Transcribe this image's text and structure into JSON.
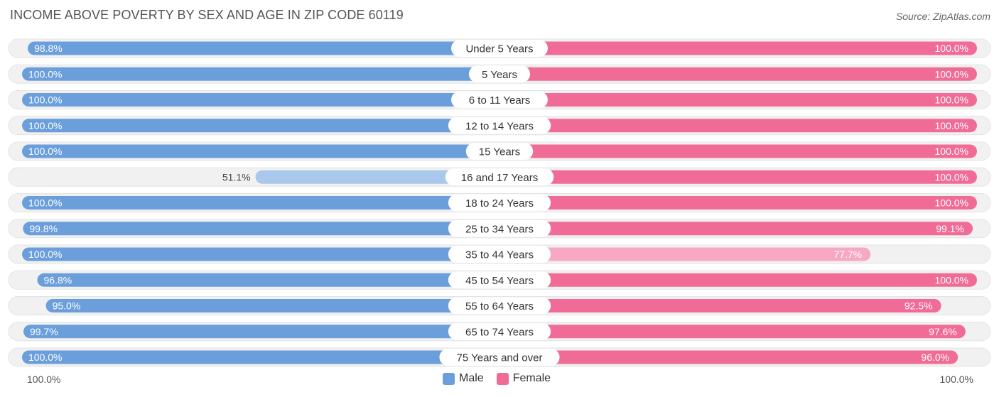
{
  "title": "INCOME ABOVE POVERTY BY SEX AND AGE IN ZIP CODE 60119",
  "source": "Source: ZipAtlas.com",
  "axis": {
    "left_label": "100.0%",
    "right_label": "100.0%"
  },
  "legend": {
    "male": "Male",
    "female": "Female"
  },
  "colors": {
    "male": "#6a9fdc",
    "male_light": "#a9c8ec",
    "female": "#f06c97",
    "female_light": "#f7a8c2",
    "track": "#f1f1f1"
  },
  "chart_data": {
    "type": "bar",
    "orientation": "horizontal-diverging",
    "title": "INCOME ABOVE POVERTY BY SEX AND AGE IN ZIP CODE 60119",
    "xlim": [
      0,
      100
    ],
    "categories": [
      "Under 5 Years",
      "5 Years",
      "6 to 11 Years",
      "12 to 14 Years",
      "15 Years",
      "16 and 17 Years",
      "18 to 24 Years",
      "25 to 34 Years",
      "35 to 44 Years",
      "45 to 54 Years",
      "55 to 64 Years",
      "65 to 74 Years",
      "75 Years and over"
    ],
    "series": [
      {
        "name": "Male",
        "values": [
          98.8,
          100.0,
          100.0,
          100.0,
          100.0,
          51.1,
          100.0,
          99.8,
          100.0,
          96.8,
          95.0,
          99.7,
          100.0
        ],
        "labels": [
          "98.8%",
          "100.0%",
          "100.0%",
          "100.0%",
          "100.0%",
          "51.1%",
          "100.0%",
          "99.8%",
          "100.0%",
          "96.8%",
          "95.0%",
          "99.7%",
          "100.0%"
        ]
      },
      {
        "name": "Female",
        "values": [
          100.0,
          100.0,
          100.0,
          100.0,
          100.0,
          100.0,
          100.0,
          99.1,
          77.7,
          100.0,
          92.5,
          97.6,
          96.0
        ],
        "labels": [
          "100.0%",
          "100.0%",
          "100.0%",
          "100.0%",
          "100.0%",
          "100.0%",
          "100.0%",
          "99.1%",
          "77.7%",
          "100.0%",
          "92.5%",
          "97.6%",
          "96.0%"
        ]
      }
    ]
  }
}
